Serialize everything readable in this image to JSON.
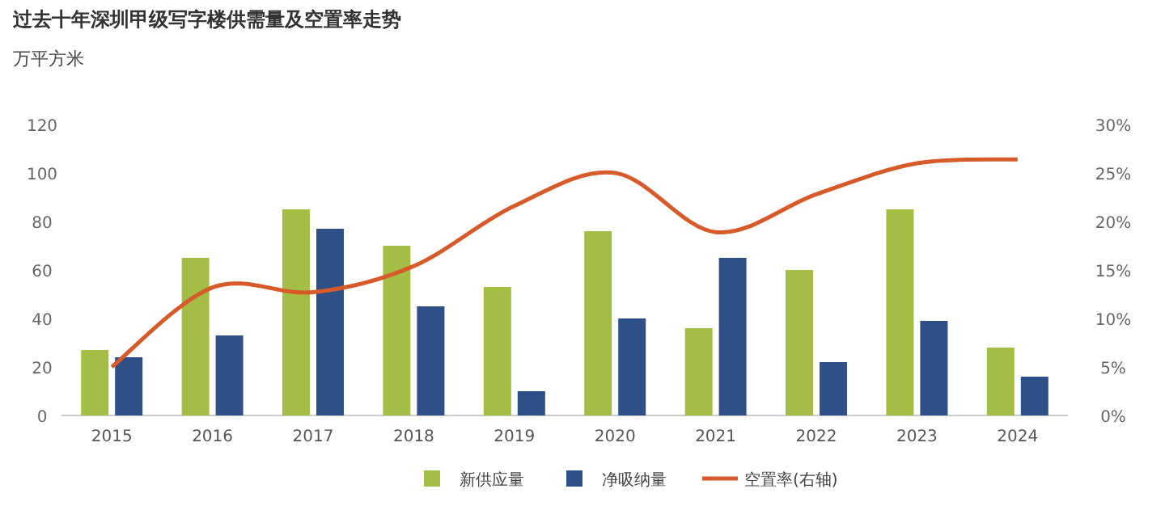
{
  "chart_data": {
    "type": "bar",
    "title": "过去十年深圳甲级写字楼供需量及空置率走势",
    "ylabel": "万平方米",
    "categories": [
      "2015",
      "2016",
      "2017",
      "2018",
      "2019",
      "2020",
      "2021",
      "2022",
      "2023",
      "2024"
    ],
    "series": [
      {
        "name": "新供应量",
        "color": "#a3bd45",
        "values": [
          27,
          65,
          85,
          70,
          53,
          76,
          36,
          60,
          85,
          28
        ]
      },
      {
        "name": "净吸纳量",
        "color": "#2e5086",
        "values": [
          24,
          33,
          77,
          45,
          10,
          40,
          65,
          22,
          39,
          16
        ]
      },
      {
        "name": "空置率(右轴)",
        "type": "line",
        "axis": "y2",
        "color": "#d65a2a",
        "values": [
          5,
          13.2,
          12.7,
          15.4,
          21.6,
          25,
          18.9,
          22.8,
          26,
          26.4
        ]
      }
    ],
    "ylim": [
      0,
      120
    ],
    "yticks": [
      0,
      20,
      40,
      60,
      80,
      100,
      120
    ],
    "y2lim": [
      0,
      30
    ],
    "y2ticks": [
      {
        "value": 0,
        "label": "0%"
      },
      {
        "value": 5,
        "label": "5%"
      },
      {
        "value": 10,
        "label": "10%"
      },
      {
        "value": 15,
        "label": "15%"
      },
      {
        "value": 20,
        "label": "20%"
      },
      {
        "value": 25,
        "label": "25%"
      },
      {
        "value": 30,
        "label": "30%"
      }
    ],
    "legend": "bottom",
    "marker": "none"
  }
}
